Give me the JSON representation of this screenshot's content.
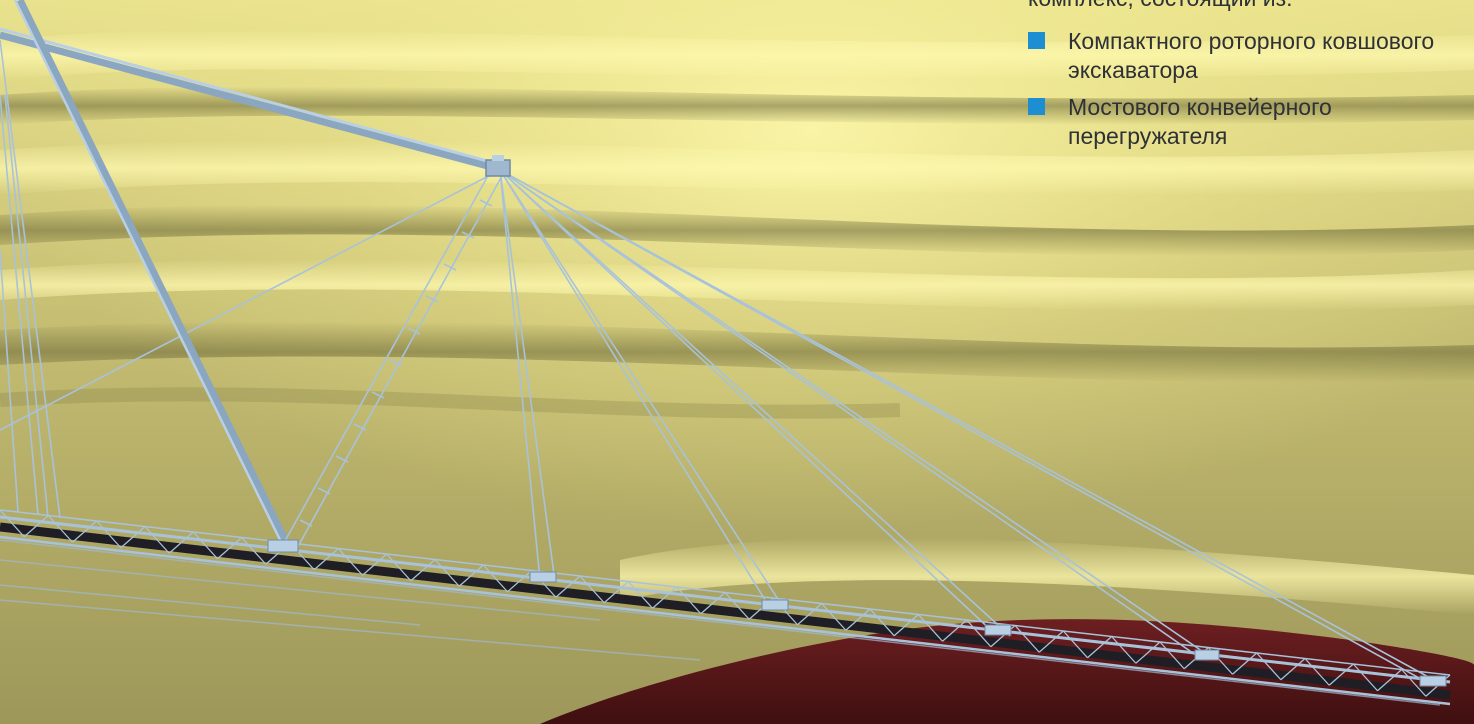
{
  "text_panel": {
    "intro": "комплекс, состоящий из:",
    "bullets": [
      {
        "label": "Компактного роторного ковшового экскаватора"
      },
      {
        "label": "Мостового конвейерного перегружателя"
      }
    ]
  },
  "colors": {
    "sand_light": "#f4ee9a",
    "sand_mid": "#c8bf73",
    "sand_dark": "#8e8a4b",
    "ground_red": "#5b1719",
    "steel": "#a8c2da",
    "steel_dark": "#6f8aa3",
    "belt": "#1e1e24",
    "bullet": "#1e8ed3",
    "text": "#2e3135"
  },
  "scene": {
    "subject": "cable-stayed conveyor bridge over sand dunes",
    "icon": "photo-render"
  }
}
